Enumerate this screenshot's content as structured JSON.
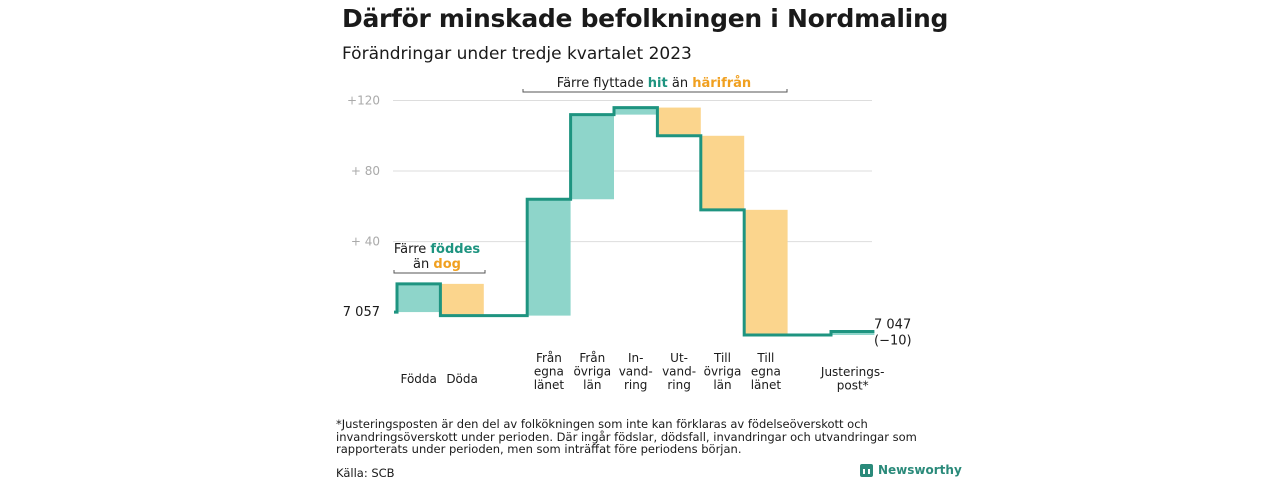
{
  "title": "Därför minskade befolkningen i Nordmaling",
  "subtitle": "Förändringar under tredje kvartalet 2023",
  "colors": {
    "inflow": "#8ed5ca",
    "outflow": "#fbd58d",
    "line": "#1e9480",
    "grid": "#dddddd",
    "teal_text": "#1e9480",
    "orange_text": "#f0a020"
  },
  "annotations": {
    "born": {
      "prefix": "Färre ",
      "teal": "föddes",
      "line2_prefix": "än ",
      "orange": "dog"
    },
    "moved": {
      "prefix": "Färre flyttade ",
      "teal": "hit",
      "mid": " än ",
      "orange": "härifrån"
    }
  },
  "start_label": "7 057",
  "end_label": "7 047",
  "end_change": "(−10)",
  "footnote": "*Justeringsposten är den del av folkökningen som inte kan förklaras av födelseöverskott och invandringsöverskott under perioden. Där ingår födslar, dödsfall, invandringar och utvandringar som rapporterats under perioden, men som inträffat före periodens början.",
  "source": "Källa: SCB",
  "brand": "Newsworthy",
  "chart_data": {
    "type": "waterfall",
    "start_value": 7057,
    "end_value": 7047,
    "y_ticks": [
      {
        "value": 40,
        "label": "+  40"
      },
      {
        "value": 80,
        "label": "+  80"
      },
      {
        "value": 120,
        "label": "+120"
      }
    ],
    "ylim": [
      -13,
      122
    ],
    "steps": [
      {
        "label": [
          "Födda"
        ],
        "change": 16,
        "kind": "in"
      },
      {
        "label": [
          "Döda"
        ],
        "change": -18,
        "kind": "out"
      },
      {
        "label": [
          ""
        ],
        "change": 0,
        "kind": "gap"
      },
      {
        "label": [
          "Från",
          "egna",
          "länet"
        ],
        "change": 66,
        "kind": "in"
      },
      {
        "label": [
          "Från",
          "övriga",
          "län"
        ],
        "change": 48,
        "kind": "in"
      },
      {
        "label": [
          "In-",
          "vand-",
          "ring"
        ],
        "change": 4,
        "kind": "in"
      },
      {
        "label": [
          "Ut-",
          "vand-",
          "ring"
        ],
        "change": -16,
        "kind": "out"
      },
      {
        "label": [
          "Till",
          "övriga",
          "län"
        ],
        "change": -42,
        "kind": "out"
      },
      {
        "label": [
          "Till",
          "egna",
          "länet"
        ],
        "change": -71,
        "kind": "out"
      },
      {
        "label": [
          ""
        ],
        "change": 0,
        "kind": "gap"
      },
      {
        "label": [
          "Justerings-",
          "post*"
        ],
        "change": 2,
        "kind": "in"
      }
    ]
  }
}
